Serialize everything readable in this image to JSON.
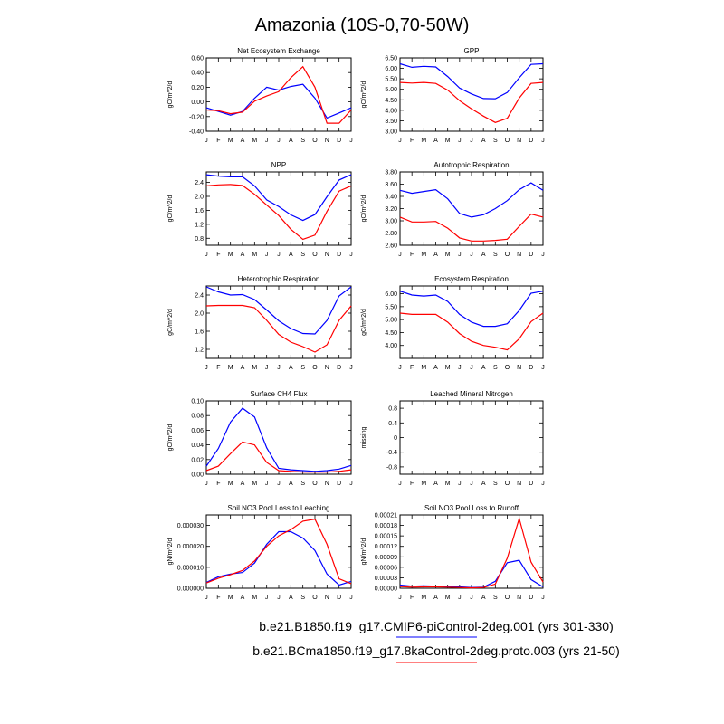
{
  "title": "Amazonia (10S-0,70-50W)",
  "months": [
    "J",
    "F",
    "M",
    "A",
    "M",
    "J",
    "J",
    "A",
    "S",
    "O",
    "N",
    "D",
    "J"
  ],
  "colors": {
    "ctrl": "#0000ff",
    "exp": "#ff0000",
    "axis": "#000000"
  },
  "legend": [
    {
      "label": "b.e21.B1850.f19_g17.CMIP6-piControl-2deg.001 (yrs 301-330)",
      "color": "#0000ff"
    },
    {
      "label": "b.e21.BCma1850.f19_g17.8kaControl-2deg.proto.003 (yrs 21-50)",
      "color": "#ff0000"
    }
  ],
  "chart_data": [
    {
      "type": "line",
      "title": "Net Ecosystem Exchange",
      "ylabel": "gC/m^2/d",
      "ylim": [
        -0.4,
        0.6
      ],
      "yticks": [
        "-0.40",
        "-0.20",
        "0.00",
        "0.20",
        "0.40",
        "0.60"
      ],
      "yvals": [
        -0.4,
        -0.2,
        0.0,
        0.2,
        0.4,
        0.6
      ],
      "series": [
        {
          "name": "piControl",
          "color": "#0000ff",
          "values": [
            -0.08,
            -0.13,
            -0.18,
            -0.13,
            0.05,
            0.2,
            0.16,
            0.21,
            0.24,
            0.05,
            -0.22,
            -0.15,
            -0.08
          ]
        },
        {
          "name": "8kaControl",
          "color": "#ff0000",
          "values": [
            -0.11,
            -0.12,
            -0.16,
            -0.14,
            0.01,
            0.08,
            0.14,
            0.33,
            0.48,
            0.2,
            -0.29,
            -0.29,
            -0.11
          ]
        }
      ]
    },
    {
      "type": "line",
      "title": "GPP",
      "ylabel": "gC/m^2/d",
      "ylim": [
        3.0,
        6.5
      ],
      "yticks": [
        "3.00",
        "3.50",
        "4.00",
        "4.50",
        "5.00",
        "5.50",
        "6.00",
        "6.50"
      ],
      "yvals": [
        3.0,
        3.5,
        4.0,
        4.5,
        5.0,
        5.5,
        6.0,
        6.5
      ],
      "series": [
        {
          "name": "piControl",
          "color": "#0000ff",
          "values": [
            6.22,
            6.05,
            6.1,
            6.07,
            5.61,
            5.06,
            4.78,
            4.56,
            4.55,
            4.85,
            5.55,
            6.19,
            6.22
          ]
        },
        {
          "name": "8kaControl",
          "color": "#ff0000",
          "values": [
            5.33,
            5.3,
            5.33,
            5.28,
            4.96,
            4.46,
            4.07,
            3.72,
            3.42,
            3.62,
            4.58,
            5.28,
            5.33
          ]
        }
      ]
    },
    {
      "type": "line",
      "title": "NPP",
      "ylabel": "gC/m^2/d",
      "ylim": [
        0.6,
        2.7
      ],
      "yticks": [
        "0.8",
        "1.2",
        "1.6",
        "2.0",
        "2.4"
      ],
      "yvals": [
        0.8,
        1.2,
        1.6,
        2.0,
        2.4
      ],
      "series": [
        {
          "name": "piControl",
          "color": "#0000ff",
          "values": [
            2.62,
            2.58,
            2.56,
            2.56,
            2.3,
            1.9,
            1.71,
            1.47,
            1.31,
            1.48,
            1.99,
            2.47,
            2.62
          ]
        },
        {
          "name": "8kaControl",
          "color": "#ff0000",
          "values": [
            2.3,
            2.33,
            2.34,
            2.31,
            2.06,
            1.75,
            1.45,
            1.06,
            0.77,
            0.89,
            1.57,
            2.15,
            2.3
          ]
        }
      ]
    },
    {
      "type": "line",
      "title": "Autotrophic Respiration",
      "ylabel": "gC/m^2/d",
      "ylim": [
        2.6,
        3.8
      ],
      "yticks": [
        "2.60",
        "2.80",
        "3.00",
        "3.20",
        "3.40",
        "3.60",
        "3.80"
      ],
      "yvals": [
        2.6,
        2.8,
        3.0,
        3.2,
        3.4,
        3.6,
        3.8
      ],
      "series": [
        {
          "name": "piControl",
          "color": "#0000ff",
          "values": [
            3.5,
            3.45,
            3.48,
            3.51,
            3.36,
            3.12,
            3.06,
            3.1,
            3.2,
            3.33,
            3.51,
            3.62,
            3.5
          ]
        },
        {
          "name": "8kaControl",
          "color": "#ff0000",
          "values": [
            3.06,
            2.98,
            2.98,
            2.99,
            2.88,
            2.72,
            2.67,
            2.67,
            2.68,
            2.7,
            2.91,
            3.11,
            3.06
          ]
        }
      ]
    },
    {
      "type": "line",
      "title": "Heterotrophic Respiration",
      "ylabel": "gC/m^2/d",
      "ylim": [
        1.0,
        2.6
      ],
      "yticks": [
        "1.2",
        "1.6",
        "2.0",
        "2.4"
      ],
      "yvals": [
        1.2,
        1.6,
        2.0,
        2.4
      ],
      "series": [
        {
          "name": "piControl",
          "color": "#0000ff",
          "values": [
            2.58,
            2.47,
            2.4,
            2.41,
            2.3,
            2.07,
            1.83,
            1.66,
            1.55,
            1.54,
            1.84,
            2.38,
            2.58
          ]
        },
        {
          "name": "8kaControl",
          "color": "#ff0000",
          "values": [
            2.16,
            2.17,
            2.17,
            2.17,
            2.12,
            1.84,
            1.53,
            1.36,
            1.26,
            1.14,
            1.3,
            1.84,
            2.16
          ]
        }
      ]
    },
    {
      "type": "line",
      "title": "Ecosystem Respiration",
      "ylabel": "gC/m^2/d",
      "ylim": [
        3.5,
        6.3
      ],
      "yticks": [
        "4.00",
        "4.50",
        "5.00",
        "5.50",
        "6.00"
      ],
      "yvals": [
        4.0,
        4.5,
        5.0,
        5.5,
        6.0
      ],
      "series": [
        {
          "name": "piControl",
          "color": "#0000ff",
          "values": [
            6.1,
            5.95,
            5.91,
            5.95,
            5.7,
            5.2,
            4.9,
            4.74,
            4.74,
            4.84,
            5.35,
            6.02,
            6.1
          ]
        },
        {
          "name": "8kaControl",
          "color": "#ff0000",
          "values": [
            5.25,
            5.2,
            5.2,
            5.2,
            4.9,
            4.46,
            4.16,
            4.0,
            3.93,
            3.83,
            4.26,
            4.92,
            5.25
          ]
        }
      ]
    },
    {
      "type": "line",
      "title": "Surface CH4 Flux",
      "ylabel": "gC/m^2/d",
      "ylim": [
        0.0,
        0.1
      ],
      "yticks": [
        "0.00",
        "0.02",
        "0.04",
        "0.06",
        "0.08",
        "0.10"
      ],
      "yvals": [
        0.0,
        0.02,
        0.04,
        0.06,
        0.08,
        0.1
      ],
      "series": [
        {
          "name": "piControl",
          "color": "#0000ff",
          "values": [
            0.011,
            0.035,
            0.071,
            0.09,
            0.078,
            0.036,
            0.008,
            0.006,
            0.005,
            0.004,
            0.005,
            0.007,
            0.012
          ]
        },
        {
          "name": "8kaControl",
          "color": "#ff0000",
          "values": [
            0.005,
            0.011,
            0.028,
            0.044,
            0.04,
            0.016,
            0.005,
            0.004,
            0.003,
            0.003,
            0.003,
            0.004,
            0.006
          ]
        }
      ]
    },
    {
      "type": "line",
      "title": "Leached Mineral Nitrogen",
      "ylabel": "missing",
      "ylim": [
        -1.0,
        1.0
      ],
      "yticks": [
        "-0.8",
        "-0.4",
        "0",
        "0.4",
        "0.8"
      ],
      "yvals": [
        -0.8,
        -0.4,
        0.0,
        0.4,
        0.8
      ],
      "series": []
    },
    {
      "type": "line",
      "title": "Soil NO3 Pool Loss to Leaching",
      "ylabel": "gN/m^2/d",
      "ylim": [
        0.0,
        3.5e-05
      ],
      "yticks": [
        "0.000000",
        "0.000010",
        "0.000020",
        "0.000030"
      ],
      "yvals": [
        0.0,
        1e-05,
        2e-05,
        3e-05
      ],
      "series": [
        {
          "name": "piControl",
          "color": "#0000ff",
          "values": [
            2.8e-06,
            5.5e-06,
            6.8e-06,
            7.5e-06,
            1.2e-05,
            2.1e-05,
            2.7e-05,
            2.7e-05,
            2.4e-05,
            1.8e-05,
            6.8e-06,
            1.5e-06,
            3.3e-06
          ]
        },
        {
          "name": "8kaControl",
          "color": "#ff0000",
          "values": [
            2.5e-06,
            4.8e-06,
            6.5e-06,
            8.5e-06,
            1.3e-05,
            2e-05,
            2.5e-05,
            2.8e-05,
            3.2e-05,
            3.3e-05,
            2.1e-05,
            4.5e-06,
            2.2e-06
          ]
        }
      ]
    },
    {
      "type": "line",
      "title": "Soil NO3 Pool Loss to Runoff",
      "ylabel": "gN/m^2/d",
      "ylim": [
        0.0,
        0.00021
      ],
      "yticks": [
        "0.00000",
        "0.00003",
        "0.00006",
        "0.00009",
        "0.00012",
        "0.00015",
        "0.00018",
        "0.00021"
      ],
      "yvals": [
        0.0,
        3e-05,
        6e-05,
        9e-05,
        0.00012,
        0.00015,
        0.00018,
        0.00021
      ],
      "series": [
        {
          "name": "piControl",
          "color": "#0000ff",
          "values": [
            9e-06,
            6e-06,
            7e-06,
            6e-06,
            5e-06,
            4e-06,
            2e-06,
            3e-06,
            2e-05,
            7.3e-05,
            8e-05,
            2.5e-05,
            4e-06
          ]
        },
        {
          "name": "8kaControl",
          "color": "#ff0000",
          "values": [
            5e-06,
            3e-06,
            4e-06,
            4e-06,
            3e-06,
            2e-06,
            1e-06,
            2e-06,
            1.2e-05,
            8.6e-05,
            0.0002,
            7.5e-05,
            1.8e-05
          ]
        }
      ]
    }
  ]
}
